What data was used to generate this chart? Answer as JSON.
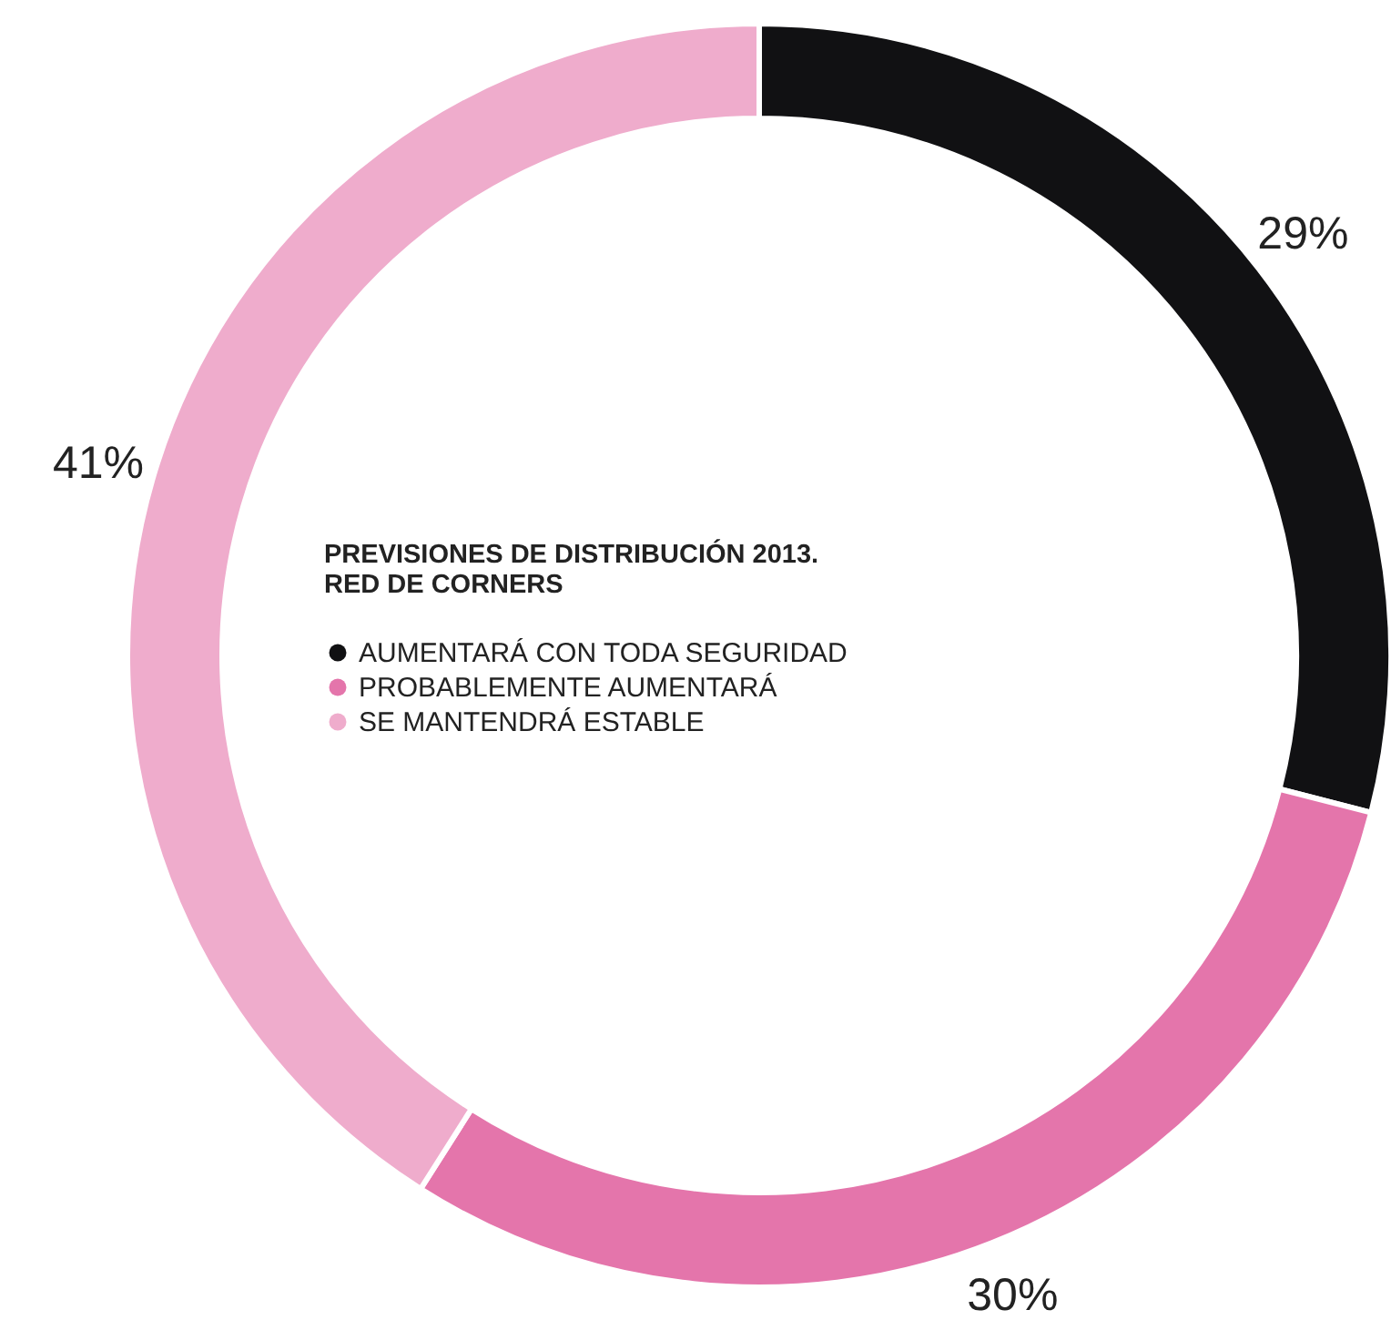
{
  "chart_data": {
    "type": "donut",
    "legend_title": "PREVISIONES DE DISTRIBUCIÓN 2013.\nRED DE CORNERS",
    "categories": [
      "AUMENTARÁ CON TODA SEGURIDAD",
      "PROBABLEMENTE AUMENTARÁ",
      "SE MANTENDRÁ ESTABLE"
    ],
    "values": [
      29,
      30,
      41
    ],
    "colors": [
      "#111113",
      "#e475ab",
      "#efaccc"
    ],
    "value_labels": [
      "29%",
      "30%",
      "41%"
    ],
    "legend": "center"
  }
}
